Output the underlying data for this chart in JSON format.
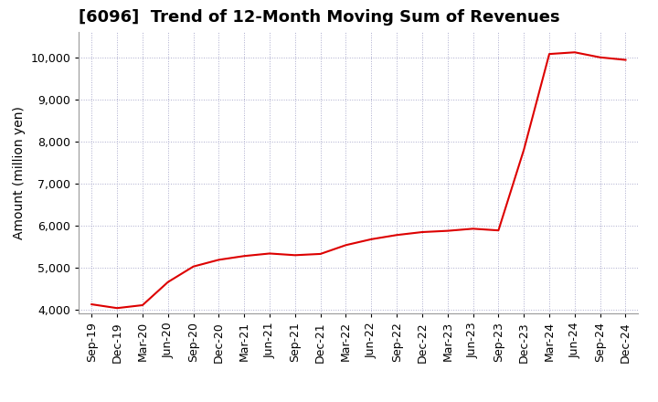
{
  "title": "[6096]  Trend of 12-Month Moving Sum of Revenues",
  "ylabel": "Amount (million yen)",
  "line_color": "#dd0000",
  "background_color": "#ffffff",
  "grid_color": "#aaaacc",
  "x_labels": [
    "Sep-19",
    "Dec-19",
    "Mar-20",
    "Jun-20",
    "Sep-20",
    "Dec-20",
    "Mar-21",
    "Jun-21",
    "Sep-21",
    "Dec-21",
    "Mar-22",
    "Jun-22",
    "Sep-22",
    "Dec-22",
    "Mar-23",
    "Jun-23",
    "Sep-23",
    "Dec-23",
    "Mar-24",
    "Jun-24",
    "Sep-24",
    "Dec-24"
  ],
  "y_values": [
    4120,
    4030,
    4100,
    4650,
    5020,
    5180,
    5270,
    5330,
    5290,
    5320,
    5530,
    5670,
    5770,
    5840,
    5870,
    5920,
    5880,
    7800,
    10080,
    10120,
    10000,
    9940
  ],
  "ylim": [
    3900,
    10600
  ],
  "yticks": [
    4000,
    5000,
    6000,
    7000,
    8000,
    9000,
    10000
  ],
  "title_fontsize": 13,
  "ylabel_fontsize": 10,
  "tick_fontsize": 9
}
